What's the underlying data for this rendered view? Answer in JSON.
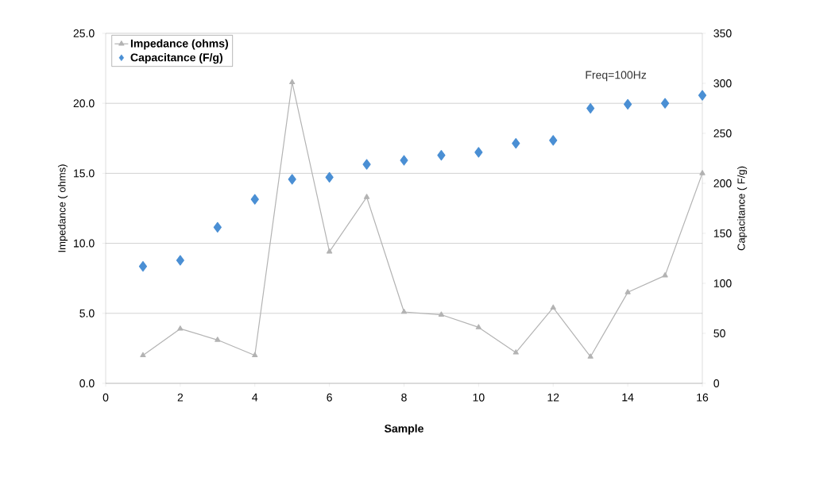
{
  "chart_data": {
    "type": "line",
    "xlabel": "Sample",
    "ylabel": "Impedance ( ohms)",
    "y2label": "Capacitance ( F/g)",
    "x": [
      1,
      2,
      3,
      4,
      5,
      6,
      7,
      8,
      9,
      10,
      11,
      12,
      13,
      14,
      15,
      16
    ],
    "series": [
      {
        "name": "Impedance (ohms)",
        "marker": "triangle",
        "color": "#b3b3b3",
        "values": [
          2.0,
          3.9,
          3.1,
          2.0,
          21.5,
          9.4,
          13.3,
          5.1,
          4.9,
          4.0,
          2.2,
          5.4,
          1.9,
          6.5,
          7.7,
          15.0
        ]
      },
      {
        "name": "Capacitance (F/g)",
        "type": "scatter",
        "marker": "diamond",
        "axis": "y2",
        "color": "#4a8fd4",
        "values": [
          117,
          123,
          156,
          184,
          204,
          206,
          219,
          223,
          228,
          231,
          240,
          243,
          275,
          279,
          280,
          288
        ]
      }
    ],
    "xlim": [
      0,
      16
    ],
    "xticks": [
      0,
      2,
      4,
      6,
      8,
      10,
      12,
      14,
      16
    ],
    "ylim": [
      0,
      25
    ],
    "yticks": [
      {
        "value": 0,
        "label": "0.0"
      },
      {
        "value": 5,
        "label": "5.0"
      },
      {
        "value": 10,
        "label": "10.0"
      },
      {
        "value": 15,
        "label": "15.0"
      },
      {
        "value": 20,
        "label": "20.0"
      },
      {
        "value": 25,
        "label": "25.0"
      }
    ],
    "y2lim": [
      0,
      350
    ],
    "y2ticks": [
      0,
      50,
      100,
      150,
      200,
      250,
      300,
      350
    ],
    "annotations": [
      "Freq=100Hz"
    ],
    "grid": "y",
    "legend": "top left"
  }
}
